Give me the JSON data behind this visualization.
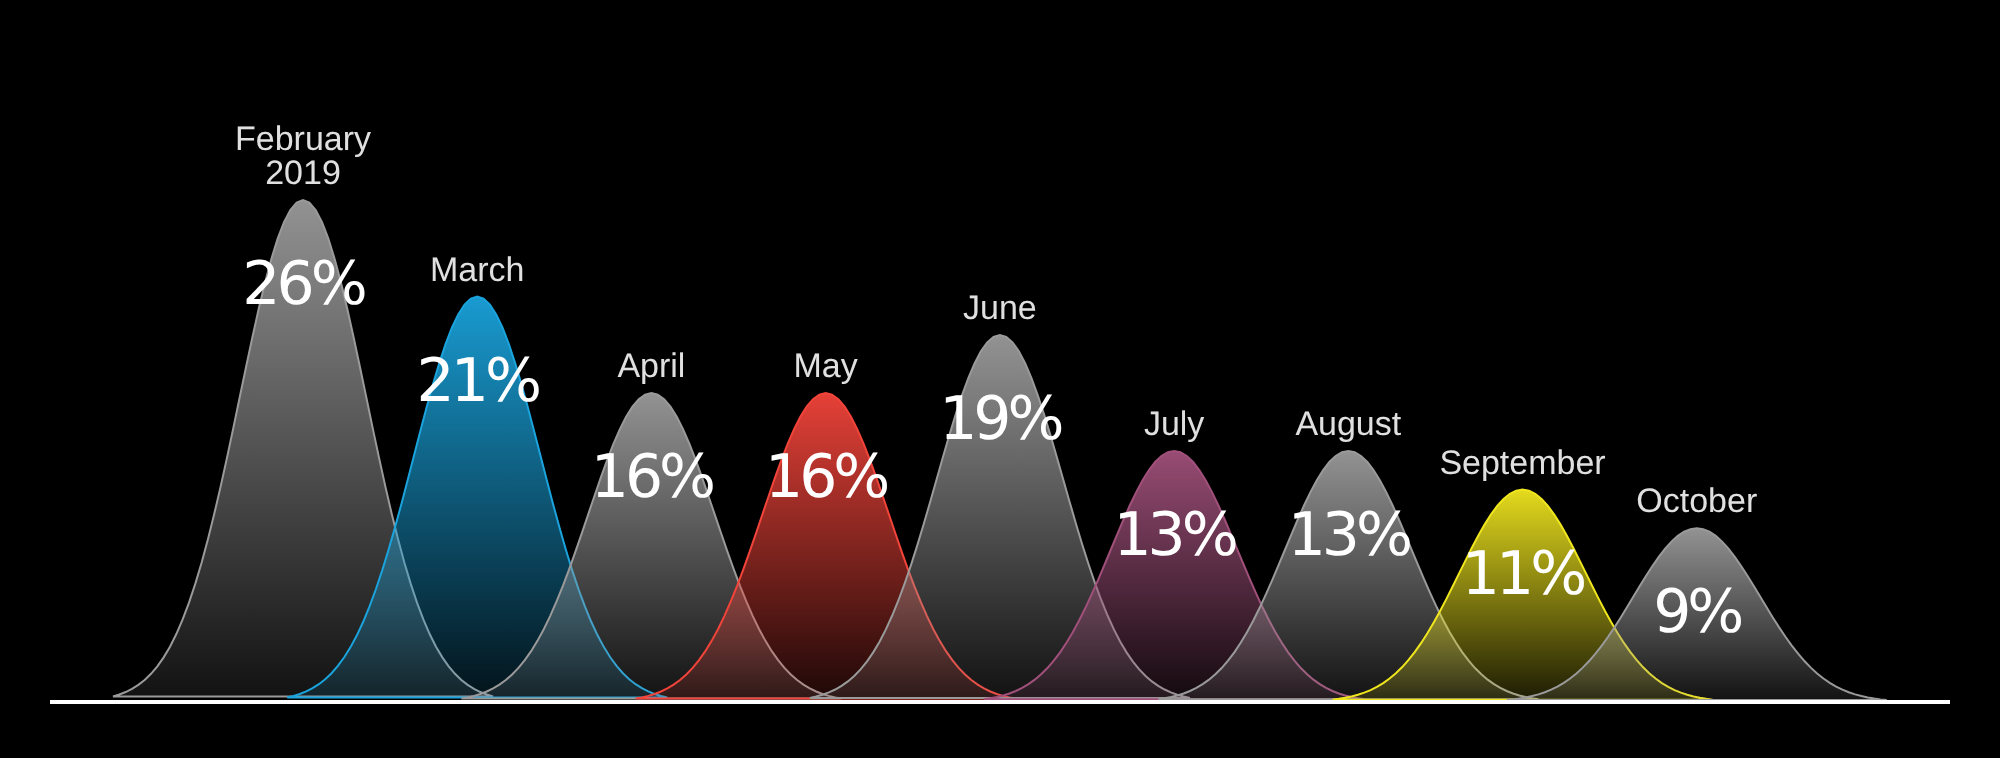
{
  "chart_data": {
    "type": "other",
    "categories": [
      "February 2019",
      "March",
      "April",
      "May",
      "June",
      "July",
      "August",
      "September",
      "October"
    ],
    "values": [
      26,
      21,
      16,
      16,
      19,
      13,
      13,
      11,
      9
    ],
    "value_labels": [
      "26%",
      "21%",
      "16%",
      "16%",
      "19%",
      "13%",
      "13%",
      "11%",
      "9%"
    ],
    "colors": [
      "#9a9a9a",
      "#1aa3dc",
      "#9a9a9a",
      "#f2443a",
      "#9a9a9a",
      "#a0507a",
      "#9a9a9a",
      "#f0e61e",
      "#9a9a9a"
    ]
  }
}
